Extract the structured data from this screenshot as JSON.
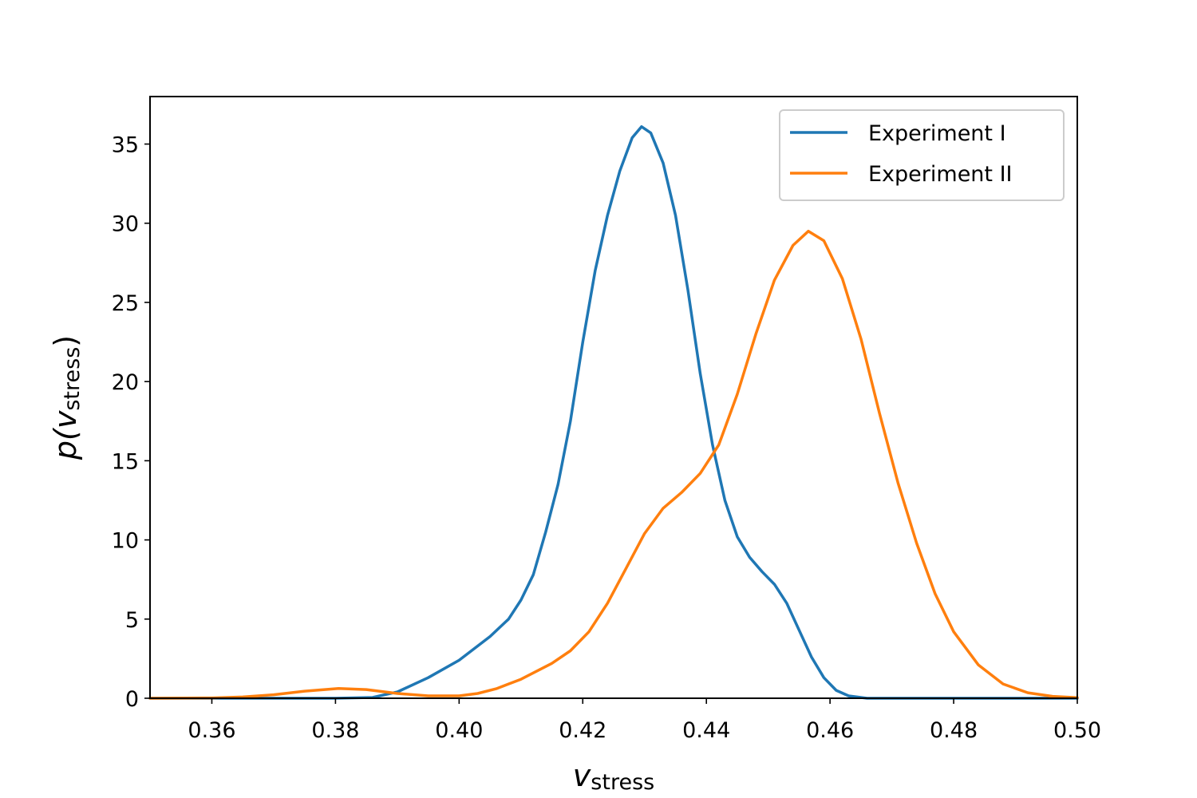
{
  "chart_data": {
    "type": "line",
    "title": "",
    "xlabel": {
      "main": "v",
      "sub": "stress"
    },
    "ylabel": {
      "main": "p(v",
      "sub": "stress",
      "close": ")"
    },
    "xlim": [
      0.35,
      0.5
    ],
    "ylim": [
      0,
      38
    ],
    "xticks": [
      "0.36",
      "0.38",
      "0.40",
      "0.42",
      "0.44",
      "0.46",
      "0.48",
      "0.50"
    ],
    "xtick_values": [
      0.36,
      0.38,
      0.4,
      0.42,
      0.44,
      0.46,
      0.48,
      0.5
    ],
    "yticks": [
      "0",
      "5",
      "10",
      "15",
      "20",
      "25",
      "30",
      "35"
    ],
    "ytick_values": [
      0,
      5,
      10,
      15,
      20,
      25,
      30,
      35
    ],
    "grid": false,
    "legend_position": "top-right",
    "series": [
      {
        "name": "Experiment I",
        "color": "#1f77b4",
        "points": [
          [
            0.35,
            0
          ],
          [
            0.37,
            0
          ],
          [
            0.38,
            0
          ],
          [
            0.386,
            0.05
          ],
          [
            0.39,
            0.4
          ],
          [
            0.395,
            1.3
          ],
          [
            0.4,
            2.4
          ],
          [
            0.405,
            3.9
          ],
          [
            0.408,
            5.0
          ],
          [
            0.41,
            6.2
          ],
          [
            0.412,
            7.8
          ],
          [
            0.414,
            10.5
          ],
          [
            0.416,
            13.5
          ],
          [
            0.418,
            17.5
          ],
          [
            0.42,
            22.5
          ],
          [
            0.422,
            27.0
          ],
          [
            0.424,
            30.5
          ],
          [
            0.426,
            33.3
          ],
          [
            0.428,
            35.4
          ],
          [
            0.4295,
            36.1
          ],
          [
            0.431,
            35.7
          ],
          [
            0.433,
            33.8
          ],
          [
            0.435,
            30.5
          ],
          [
            0.437,
            25.8
          ],
          [
            0.439,
            20.5
          ],
          [
            0.441,
            16.0
          ],
          [
            0.443,
            12.5
          ],
          [
            0.445,
            10.2
          ],
          [
            0.447,
            8.9
          ],
          [
            0.449,
            8.0
          ],
          [
            0.451,
            7.2
          ],
          [
            0.453,
            6.0
          ],
          [
            0.455,
            4.3
          ],
          [
            0.457,
            2.6
          ],
          [
            0.459,
            1.3
          ],
          [
            0.461,
            0.5
          ],
          [
            0.463,
            0.15
          ],
          [
            0.466,
            0
          ],
          [
            0.48,
            0
          ],
          [
            0.5,
            0
          ]
        ]
      },
      {
        "name": "Experiment II",
        "color": "#ff7f0e",
        "points": [
          [
            0.35,
            0
          ],
          [
            0.36,
            0.02
          ],
          [
            0.365,
            0.08
          ],
          [
            0.37,
            0.22
          ],
          [
            0.375,
            0.45
          ],
          [
            0.3805,
            0.62
          ],
          [
            0.385,
            0.55
          ],
          [
            0.39,
            0.3
          ],
          [
            0.395,
            0.15
          ],
          [
            0.4,
            0.15
          ],
          [
            0.403,
            0.3
          ],
          [
            0.406,
            0.6
          ],
          [
            0.41,
            1.2
          ],
          [
            0.415,
            2.2
          ],
          [
            0.418,
            3.0
          ],
          [
            0.421,
            4.2
          ],
          [
            0.424,
            6.0
          ],
          [
            0.427,
            8.2
          ],
          [
            0.43,
            10.4
          ],
          [
            0.433,
            12.0
          ],
          [
            0.436,
            13.0
          ],
          [
            0.439,
            14.2
          ],
          [
            0.442,
            16.0
          ],
          [
            0.445,
            19.2
          ],
          [
            0.448,
            23.0
          ],
          [
            0.451,
            26.4
          ],
          [
            0.454,
            28.6
          ],
          [
            0.4565,
            29.5
          ],
          [
            0.459,
            28.9
          ],
          [
            0.462,
            26.5
          ],
          [
            0.465,
            22.7
          ],
          [
            0.468,
            18.0
          ],
          [
            0.471,
            13.6
          ],
          [
            0.474,
            9.8
          ],
          [
            0.477,
            6.6
          ],
          [
            0.48,
            4.2
          ],
          [
            0.484,
            2.1
          ],
          [
            0.488,
            0.9
          ],
          [
            0.492,
            0.35
          ],
          [
            0.496,
            0.12
          ],
          [
            0.5,
            0.04
          ]
        ]
      }
    ]
  }
}
